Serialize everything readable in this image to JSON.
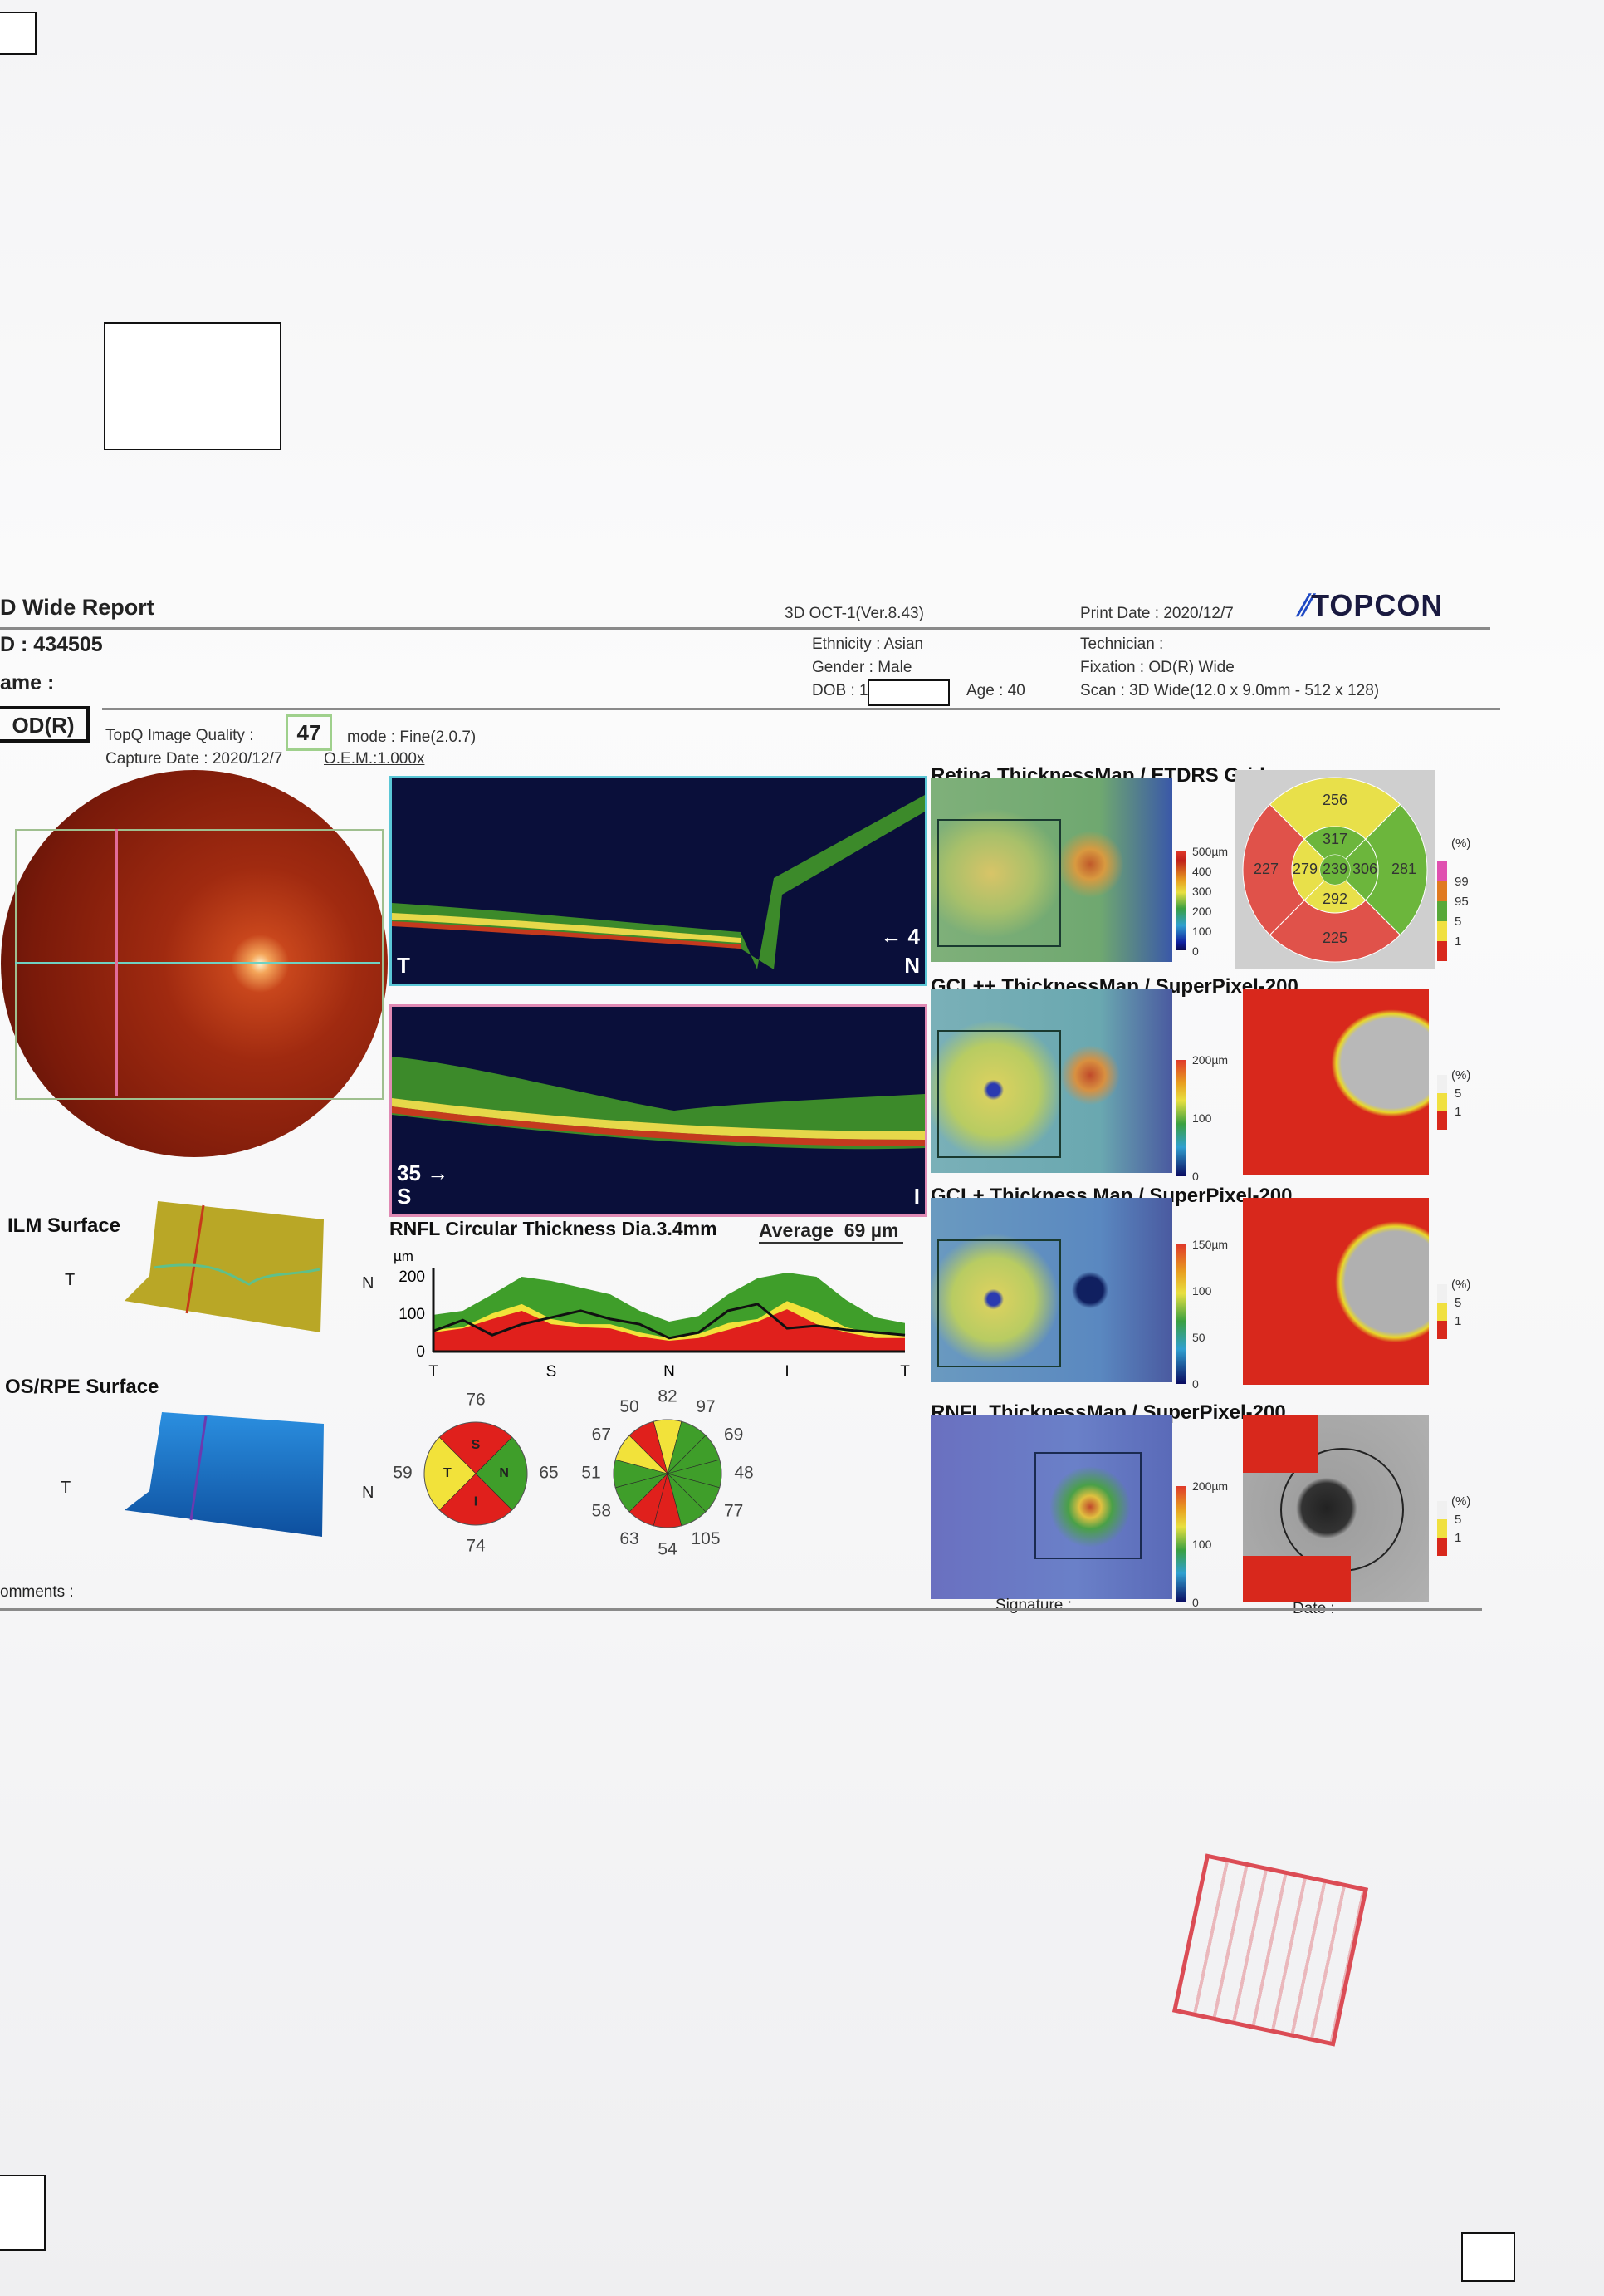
{
  "report": {
    "title": "D Wide Report",
    "device": "3D OCT-1(Ver.8.43)",
    "print_date": "Print Date : 2020/12/7",
    "brand": "TOPCON",
    "id": "D : 434505",
    "name": "ame :",
    "ethnicity": "Ethnicity : Asian",
    "gender": "Gender : Male",
    "dob": "DOB : 1",
    "age": "Age : 40",
    "technician": "Technician :",
    "fixation": "Fixation : OD(R) Wide",
    "scan": "Scan : 3D Wide(12.0 x 9.0mm - 512 x 128)",
    "eye": "OD(R)",
    "topq_label": "TopQ Image Quality :",
    "topq_value": "47",
    "mode": "mode : Fine(2.0.7)",
    "capture_date": "Capture Date : 2020/12/7",
    "oem": "O.E.M.:1.000x",
    "comments": "omments :",
    "signature": "Signature :",
    "date": "Date :"
  },
  "oct": {
    "scan1": {
      "left": "T",
      "right": "N",
      "index": "← 4"
    },
    "scan2": {
      "index": "35 →",
      "left": "S",
      "right": "I"
    }
  },
  "surfaces": [
    {
      "title": "ILM Surface",
      "left": "T",
      "right": "N"
    },
    {
      "title": "OS/RPE Surface",
      "left": "T",
      "right": "N"
    }
  ],
  "maps": [
    {
      "title": "Retina ThicknessMap / ETDRS Grid",
      "scale": [
        "500µm",
        "400",
        "300",
        "200",
        "100",
        "0"
      ],
      "legend_unit": "(%)",
      "legend": [
        "99",
        "95",
        "5",
        "1"
      ]
    },
    {
      "title": "GCL++ ThicknessMap / SuperPixel-200",
      "scale": [
        "200µm",
        "100",
        "0"
      ],
      "legend_unit": "(%)",
      "legend": [
        "5",
        "1"
      ]
    },
    {
      "title": "GCL+ Thickness Map / SuperPixel-200",
      "scale": [
        "150µm",
        "100",
        "50",
        "0"
      ],
      "legend_unit": "(%)",
      "legend": [
        "5",
        "1"
      ]
    },
    {
      "title": "RNFL ThicknessMap / SuperPixel-200",
      "scale": [
        "200µm",
        "100",
        "0"
      ],
      "legend_unit": "(%)",
      "legend": [
        "5",
        "1"
      ]
    }
  ],
  "etdrs": {
    "center": "239",
    "inner": {
      "superior": "317",
      "nasal": "306",
      "inferior": "292",
      "temporal": "279"
    },
    "outer": {
      "superior": "256",
      "nasal": "281",
      "inferior": "225",
      "temporal": "227"
    },
    "colors": {
      "superior_outer": "#e8e04a",
      "nasal_outer": "#6cb63c",
      "inferior_outer": "#e0524a",
      "temporal_outer": "#e0524a",
      "superior_inner": "#6cb63c",
      "nasal_inner": "#6cb63c",
      "inferior_inner": "#e8e04a",
      "temporal_inner": "#e8e04a",
      "center": "#6cb63c"
    }
  },
  "chart_data": {
    "type": "area",
    "title": "RNFL Circular Thickness Dia.3.4mm",
    "average_label": "Average",
    "average_value": "69",
    "average_unit": "µm",
    "ylabel": "µm",
    "ylim": [
      0,
      230
    ],
    "yticks": [
      "0",
      "100",
      "200"
    ],
    "xticks": [
      "T",
      "S",
      "N",
      "I",
      "T"
    ],
    "series": [
      {
        "role": "normal-upper",
        "color": "#3f9e2a",
        "values": [
          98,
          109,
          153,
          200,
          189,
          171,
          153,
          109,
          80,
          95,
          153,
          196,
          211,
          200,
          138,
          91,
          76
        ]
      },
      {
        "role": "borderline",
        "color": "#f2e23a",
        "values": [
          58,
          65,
          102,
          127,
          87,
          73,
          73,
          51,
          36,
          47,
          76,
          87,
          135,
          105,
          65,
          47,
          44
        ]
      },
      {
        "role": "abnormal",
        "color": "#e0201c",
        "values": [
          51,
          62,
          87,
          109,
          73,
          65,
          62,
          40,
          29,
          36,
          58,
          80,
          113,
          73,
          51,
          36,
          36
        ]
      },
      {
        "role": "measured",
        "color": "#111111",
        "values": [
          55,
          84,
          44,
          73,
          91,
          109,
          87,
          73,
          36,
          51,
          109,
          127,
          62,
          69,
          58,
          51,
          44
        ]
      }
    ],
    "quadrants": [
      {
        "label": "S",
        "value": "76",
        "color": "#e0201c"
      },
      {
        "label": "N",
        "value": "65",
        "color": "#3f9e2a"
      },
      {
        "label": "I",
        "value": "74",
        "color": "#e0201c"
      },
      {
        "label": "T",
        "value": "59",
        "color": "#f2e23a"
      }
    ],
    "clock_hours": [
      {
        "value": "82",
        "color": "#f2e23a"
      },
      {
        "value": "97",
        "color": "#3f9e2a"
      },
      {
        "value": "69",
        "color": "#3f9e2a"
      },
      {
        "value": "48",
        "color": "#3f9e2a"
      },
      {
        "value": "77",
        "color": "#3f9e2a"
      },
      {
        "value": "105",
        "color": "#3f9e2a"
      },
      {
        "value": "54",
        "color": "#e0201c"
      },
      {
        "value": "63",
        "color": "#e0201c"
      },
      {
        "value": "58",
        "color": "#3f9e2a"
      },
      {
        "value": "51",
        "color": "#3f9e2a"
      },
      {
        "value": "67",
        "color": "#f2e23a"
      },
      {
        "value": "50",
        "color": "#e0201c"
      }
    ]
  }
}
